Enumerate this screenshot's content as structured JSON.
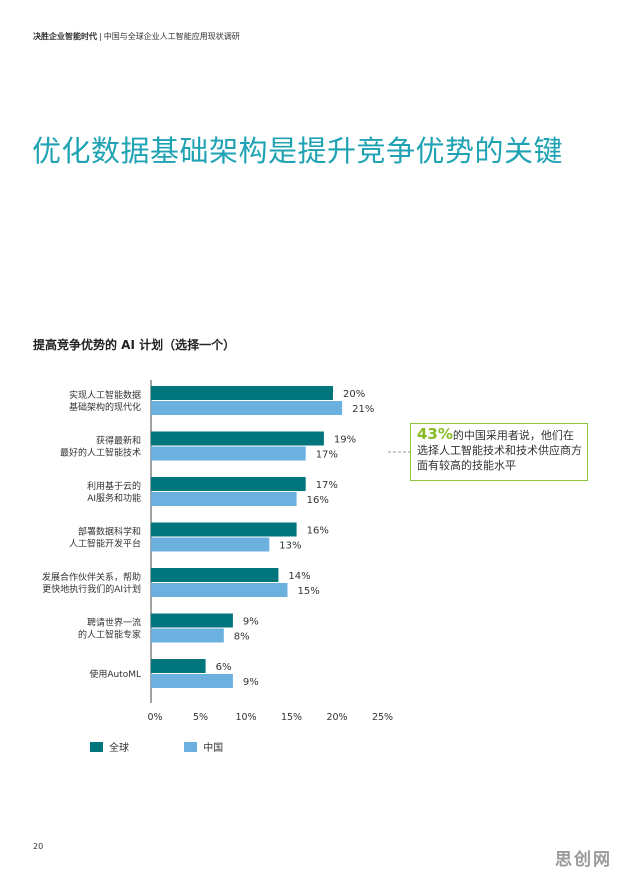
{
  "header": {
    "brand": "决胜企业智能时代",
    "separator": "|",
    "report": "中国与全球企业人工智能应用现状调研"
  },
  "title": "优化数据基础架构是提升竞争优势的关键",
  "chart_data": {
    "type": "bar",
    "orientation": "horizontal",
    "title": "提高竞争优势的 AI 计划（选择一个）",
    "categories": [
      [
        "实现人工智能数据",
        "基础架构的现代化"
      ],
      [
        "获得最新和",
        "最好的人工智能技术"
      ],
      [
        "利用基于云的",
        "AI服务和功能"
      ],
      [
        "部署数据科学和",
        "人工智能开发平台"
      ],
      [
        "发展合作伙伴关系，帮助",
        "更快地执行我们的AI计划"
      ],
      [
        "聘请世界一流",
        "的人工智能专家"
      ],
      [
        "使用AutoML"
      ]
    ],
    "series": [
      {
        "name": "全球",
        "color": "#00767c",
        "values": [
          20,
          19,
          17,
          16,
          14,
          9,
          6
        ]
      },
      {
        "name": "中国",
        "color": "#6cb0e0",
        "values": [
          21,
          17,
          16,
          13,
          15,
          8,
          9
        ]
      }
    ],
    "value_suffix": "%",
    "xlim": [
      0,
      25
    ],
    "xticks": [
      "0%",
      "5%",
      "10%",
      "15%",
      "20%",
      "25%"
    ],
    "grid": false,
    "legend": "bottom-left"
  },
  "callout": {
    "highlight": "43%",
    "text": "的中国采用者说，他们在选择人工智能技术和技术供应商方面有较高的技能水平",
    "border_color": "#8cc63f",
    "highlight_color": "#86bc25"
  },
  "page_number": "20",
  "watermark": "思创网"
}
